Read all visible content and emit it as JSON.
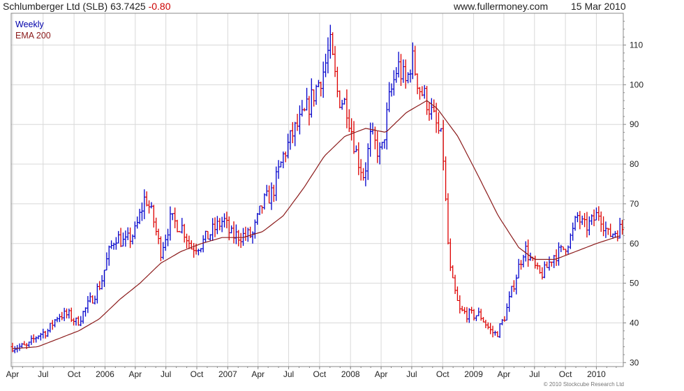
{
  "header": {
    "title": "Schlumberger Ltd (SLB) 63.7425",
    "change": "-0.80",
    "site": "www.fullermoney.com",
    "date": "15 Mar 2010"
  },
  "copyright": "© 2010 Stockcube Research Ltd",
  "colors": {
    "up": "#0000cc",
    "down": "#dd0000",
    "ema": "#8b1a1a",
    "grid": "#d8d8d8",
    "frame": "#888888",
    "weekly_legend": "#0000aa",
    "ema_legend": "#8b1a1a"
  },
  "chart_data": {
    "type": "line",
    "title": "Schlumberger Ltd (SLB) 63.7425 -0.80",
    "chart_style": "weekly bar (high-low) chart with EMA overlay, up weeks blue, down weeks red",
    "legend": [
      "Weekly",
      "EMA 200"
    ],
    "legend_position": "top-left",
    "grid": true,
    "y_axis_position": "right",
    "ylim": [
      29,
      118
    ],
    "y_ticks": [
      30,
      40,
      50,
      60,
      70,
      80,
      90,
      100,
      110
    ],
    "x_tick_labels": [
      "Apr",
      "Jul",
      "Oct",
      "2006",
      "Apr",
      "Jul",
      "Oct",
      "2007",
      "Apr",
      "Jul",
      "Oct",
      "2008",
      "Apr",
      "Jul",
      "Oct",
      "2009",
      "Apr",
      "Jul",
      "Oct",
      "2010"
    ],
    "xlim": [
      "2005-03-28",
      "2010-03-22"
    ],
    "series": [
      {
        "name": "Weekly",
        "points": [
          [
            "2005-04-01",
            34
          ],
          [
            "2005-05-15",
            34
          ],
          [
            "2005-06-15",
            37
          ],
          [
            "2005-07-15",
            38
          ],
          [
            "2005-08-15",
            42
          ],
          [
            "2005-09-15",
            42
          ],
          [
            "2005-10-10",
            40
          ],
          [
            "2005-11-15",
            45
          ],
          [
            "2005-12-20",
            50
          ],
          [
            "2006-01-10",
            57
          ],
          [
            "2006-02-01",
            62
          ],
          [
            "2006-03-01",
            60
          ],
          [
            "2006-04-01",
            63
          ],
          [
            "2006-05-01",
            72
          ],
          [
            "2006-05-25",
            66
          ],
          [
            "2006-06-15",
            58
          ],
          [
            "2006-07-15",
            66
          ],
          [
            "2006-08-20",
            64
          ],
          [
            "2006-09-15",
            59
          ],
          [
            "2006-10-15",
            60
          ],
          [
            "2006-11-15",
            63
          ],
          [
            "2006-12-20",
            66
          ],
          [
            "2007-01-10",
            62
          ],
          [
            "2007-02-15",
            62
          ],
          [
            "2007-03-15",
            62
          ],
          [
            "2007-04-15",
            70
          ],
          [
            "2007-05-15",
            73
          ],
          [
            "2007-06-15",
            82
          ],
          [
            "2007-07-15",
            88
          ],
          [
            "2007-08-15",
            92
          ],
          [
            "2007-09-15",
            98
          ],
          [
            "2007-10-15",
            104
          ],
          [
            "2007-11-01",
            110
          ],
          [
            "2007-11-25",
            97
          ],
          [
            "2007-12-20",
            95
          ],
          [
            "2008-01-20",
            82
          ],
          [
            "2008-02-10",
            77
          ],
          [
            "2008-03-01",
            87
          ],
          [
            "2008-04-01",
            82
          ],
          [
            "2008-04-25",
            96
          ],
          [
            "2008-05-20",
            105
          ],
          [
            "2008-06-15",
            100
          ],
          [
            "2008-07-01",
            107
          ],
          [
            "2008-07-25",
            99
          ],
          [
            "2008-08-15",
            96
          ],
          [
            "2008-09-15",
            89
          ],
          [
            "2008-10-01",
            85
          ],
          [
            "2008-10-15",
            62
          ],
          [
            "2008-10-25",
            52
          ],
          [
            "2008-11-20",
            43
          ],
          [
            "2008-12-20",
            42
          ],
          [
            "2009-01-20",
            42
          ],
          [
            "2009-02-20",
            38
          ],
          [
            "2009-03-10",
            37
          ],
          [
            "2009-04-05",
            42
          ],
          [
            "2009-05-01",
            50
          ],
          [
            "2009-06-01",
            59
          ],
          [
            "2009-06-25",
            55
          ],
          [
            "2009-07-15",
            52
          ],
          [
            "2009-08-01",
            53
          ],
          [
            "2009-08-25",
            57
          ],
          [
            "2009-09-20",
            58
          ],
          [
            "2009-10-20",
            62
          ],
          [
            "2009-11-05",
            67
          ],
          [
            "2009-11-25",
            64
          ],
          [
            "2009-12-15",
            65
          ],
          [
            "2010-01-10",
            68
          ],
          [
            "2010-02-05",
            62
          ],
          [
            "2010-02-25",
            63
          ],
          [
            "2010-03-15",
            63.74
          ]
        ]
      },
      {
        "name": "EMA 200",
        "points": [
          [
            "2005-04-01",
            33.5
          ],
          [
            "2005-06-15",
            34
          ],
          [
            "2005-08-15",
            36
          ],
          [
            "2005-10-15",
            38
          ],
          [
            "2005-12-15",
            41
          ],
          [
            "2006-02-15",
            46
          ],
          [
            "2006-04-15",
            50
          ],
          [
            "2006-06-15",
            55
          ],
          [
            "2006-08-15",
            58
          ],
          [
            "2006-10-15",
            60
          ],
          [
            "2006-12-15",
            61.5
          ],
          [
            "2007-02-15",
            61.5
          ],
          [
            "2007-04-15",
            63
          ],
          [
            "2007-06-15",
            67
          ],
          [
            "2007-08-15",
            74
          ],
          [
            "2007-10-15",
            82
          ],
          [
            "2007-12-15",
            87
          ],
          [
            "2008-02-15",
            89
          ],
          [
            "2008-04-15",
            88
          ],
          [
            "2008-06-15",
            93
          ],
          [
            "2008-08-15",
            96
          ],
          [
            "2008-09-15",
            94
          ],
          [
            "2008-11-15",
            87
          ],
          [
            "2009-01-15",
            77
          ],
          [
            "2009-03-15",
            67
          ],
          [
            "2009-05-15",
            59
          ],
          [
            "2009-07-01",
            56
          ],
          [
            "2009-09-01",
            56
          ],
          [
            "2009-11-01",
            58
          ],
          [
            "2010-01-01",
            60
          ],
          [
            "2010-03-15",
            62
          ]
        ]
      }
    ]
  }
}
